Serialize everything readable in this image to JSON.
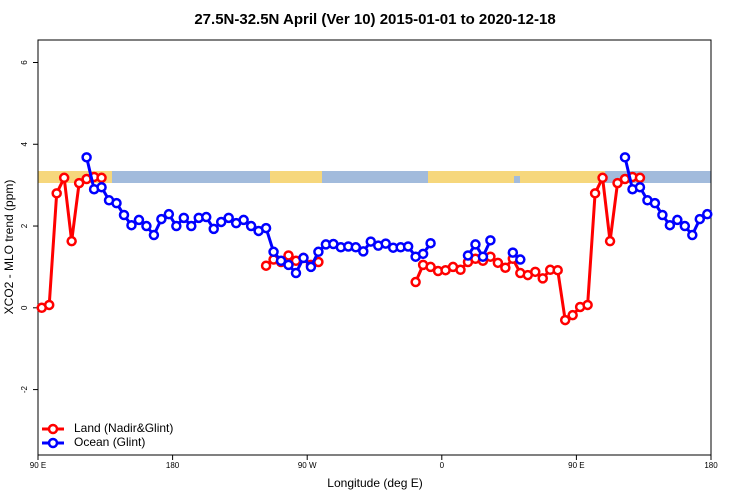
{
  "chart_data": {
    "type": "line",
    "title": "27.5N-32.5N April (Ver 10)   2015-01-01 to 2020-12-18",
    "x_label": "Longitude (deg E)",
    "y_label": "XCO2 - MLO trend (ppm)",
    "xlim": [
      90,
      540
    ],
    "ylim": [
      -3.6,
      6.55
    ],
    "xticks": [
      {
        "value": 90,
        "label": "90 E"
      },
      180,
      {
        "value": 270,
        "label": "90 W"
      },
      {
        "value": 360,
        "label": "0"
      },
      {
        "value": 450,
        "label": "90 E"
      },
      {
        "value": 540,
        "label": "180"
      }
    ],
    "yticks": [
      -2,
      0,
      2,
      4,
      6
    ],
    "legend": "bottom-left",
    "x": [
      92.5,
      97.5,
      102.5,
      107.5,
      112.5,
      117.5,
      122.5,
      127.5,
      132.5,
      137.5,
      142.5,
      147.5,
      152.5,
      157.5,
      162.5,
      167.5,
      172.5,
      177.5,
      182.5,
      187.5,
      192.5,
      197.5,
      202.5,
      207.5,
      212.5,
      217.5,
      222.5,
      227.5,
      232.5,
      237.5,
      242.5,
      247.5,
      252.5,
      257.5,
      262.5,
      267.5,
      272.5,
      277.5,
      282.5,
      287.5,
      292.5,
      297.5,
      302.5,
      307.5,
      312.5,
      317.5,
      322.5,
      327.5,
      332.5,
      337.5,
      342.5,
      347.5,
      352.5,
      357.5,
      362.5,
      367.5,
      372.5,
      377.5,
      382.5,
      387.5,
      392.5,
      397.5,
      402.5,
      407.5,
      412.5,
      417.5,
      422.5,
      427.5,
      432.5,
      437.5,
      442.5,
      447.5,
      452.5,
      457.5,
      462.5,
      467.5,
      472.5,
      477.5,
      482.5,
      487.5,
      492.5,
      497.5,
      502.5,
      507.5,
      512.5,
      517.5,
      522.5,
      527.5,
      532.5,
      537.5
    ],
    "series": [
      {
        "name": "Land (Nadir&Glint)",
        "color": "#ff0000",
        "values": [
          0,
          0.07,
          2.8,
          3.18,
          1.63,
          3.05,
          3.15,
          3.2,
          3.18,
          null,
          null,
          null,
          null,
          null,
          null,
          null,
          null,
          null,
          null,
          null,
          null,
          null,
          null,
          null,
          null,
          null,
          null,
          null,
          null,
          null,
          1.03,
          1.18,
          1.12,
          1.28,
          1.15,
          1.22,
          1.05,
          1.12,
          null,
          null,
          null,
          null,
          null,
          null,
          null,
          null,
          null,
          null,
          null,
          null,
          0.63,
          1.05,
          1.0,
          0.9,
          0.92,
          1.0,
          0.93,
          1.12,
          1.2,
          1.15,
          1.25,
          1.1,
          0.98,
          1.2,
          0.85,
          0.8,
          0.88,
          0.72,
          0.93,
          0.92,
          -0.3,
          -0.18,
          0.02,
          0.07,
          2.8,
          3.18,
          1.63,
          3.05,
          3.15,
          3.2,
          3.18,
          null,
          null,
          null,
          null,
          null,
          null,
          null,
          null,
          null
        ]
      },
      {
        "name": "Ocean (Glint)",
        "color": "#0000ff",
        "values": [
          null,
          null,
          null,
          null,
          null,
          null,
          3.68,
          2.9,
          2.95,
          2.63,
          2.56,
          2.27,
          2.02,
          2.15,
          2.0,
          1.78,
          2.17,
          2.29,
          2.0,
          2.2,
          2.0,
          2.2,
          2.22,
          1.93,
          2.1,
          2.2,
          2.07,
          2.15,
          2.0,
          1.88,
          1.95,
          1.37,
          1.15,
          1.05,
          0.85,
          1.22,
          1.0,
          1.37,
          1.55,
          1.56,
          1.48,
          1.5,
          1.48,
          1.38,
          1.62,
          1.52,
          1.57,
          1.47,
          1.48,
          1.5,
          1.25,
          1.32,
          1.58,
          null,
          null,
          null,
          null,
          1.28,
          1.55,
          1.25,
          1.65,
          null,
          null,
          1.35,
          1.18,
          null,
          null,
          null,
          null,
          null,
          null,
          null,
          null,
          null,
          null,
          null,
          null,
          null,
          3.68,
          2.9,
          2.95,
          2.63,
          2.56,
          2.27,
          2.02,
          2.15,
          2.0,
          1.78,
          2.17,
          2.29
        ]
      }
    ]
  }
}
